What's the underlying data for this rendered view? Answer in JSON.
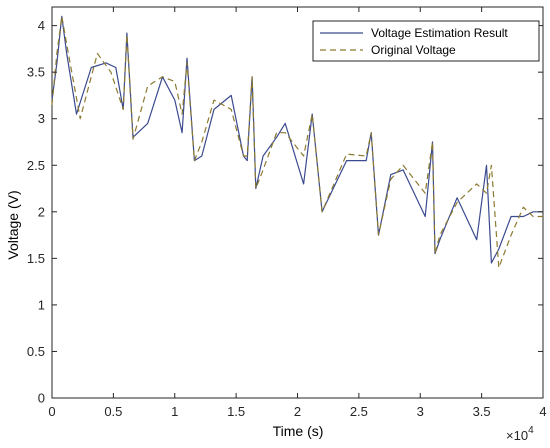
{
  "chart_data": {
    "type": "line",
    "xlabel": "Time (s)",
    "ylabel": "Voltage (V)",
    "x_exponent_label": "×10",
    "x_exponent_power": "4",
    "xlim": [
      0,
      40000
    ],
    "ylim": [
      0,
      4.2
    ],
    "xticks": [
      0,
      5000,
      10000,
      15000,
      20000,
      25000,
      30000,
      35000,
      40000
    ],
    "xtick_labels": [
      "0",
      "0.5",
      "1",
      "1.5",
      "2",
      "2.5",
      "3",
      "3.5",
      "4"
    ],
    "yticks": [
      0,
      0.5,
      1,
      1.5,
      2,
      2.5,
      3,
      3.5,
      4
    ],
    "ytick_labels": [
      "0",
      "0.5",
      "1",
      "1.5",
      "2",
      "2.5",
      "3",
      "3.5",
      "4"
    ],
    "grid": false,
    "legend_position": "top-right",
    "series": [
      {
        "name": "Voltage Estimation Result",
        "color": "#3b4a8f",
        "style": "solid",
        "x": [
          0,
          400,
          800,
          1200,
          2000,
          3200,
          4400,
          5200,
          5800,
          6100,
          6600,
          7800,
          9000,
          10000,
          10600,
          11000,
          11600,
          12200,
          13200,
          14600,
          15600,
          15900,
          16300,
          16600,
          17200,
          18300,
          19000,
          20500,
          21200,
          22000,
          24000,
          25600,
          26000,
          26600,
          27600,
          28600,
          30400,
          31000,
          31200,
          31600,
          33000,
          34600,
          35400,
          35800,
          36400,
          37400,
          38400,
          39200,
          40000
        ],
        "y": [
          3.2,
          3.6,
          4.1,
          3.7,
          3.05,
          3.55,
          3.6,
          3.55,
          3.1,
          3.92,
          2.8,
          2.95,
          3.45,
          3.2,
          2.85,
          3.65,
          2.55,
          2.6,
          3.1,
          3.25,
          2.6,
          2.55,
          3.45,
          2.25,
          2.6,
          2.8,
          2.95,
          2.3,
          3.05,
          2.0,
          2.55,
          2.55,
          2.85,
          1.75,
          2.4,
          2.45,
          1.95,
          2.75,
          1.55,
          1.7,
          2.15,
          1.7,
          2.5,
          1.45,
          1.6,
          1.95,
          1.95,
          2.0,
          2.0
        ]
      },
      {
        "name": "Original Voltage",
        "color": "#8c7a2f",
        "style": "dashed",
        "x": [
          0,
          400,
          800,
          1200,
          2300,
          3700,
          4800,
          5800,
          6100,
          6600,
          7800,
          9000,
          10000,
          10600,
          11000,
          11600,
          12200,
          13200,
          14600,
          15600,
          15900,
          16300,
          16600,
          17200,
          18300,
          19000,
          20500,
          21200,
          22000,
          24000,
          25600,
          26000,
          26600,
          27600,
          28600,
          30400,
          31000,
          31200,
          31600,
          33000,
          34600,
          35400,
          35800,
          36400,
          37400,
          38400,
          39200,
          40000
        ],
        "y": [
          3.15,
          3.7,
          4.1,
          3.8,
          3.0,
          3.7,
          3.5,
          3.1,
          3.9,
          2.78,
          3.35,
          3.45,
          3.4,
          3.05,
          3.6,
          2.55,
          2.75,
          3.2,
          3.1,
          2.6,
          2.6,
          3.45,
          2.25,
          2.45,
          2.85,
          2.85,
          2.6,
          3.05,
          2.0,
          2.62,
          2.6,
          2.85,
          1.75,
          2.35,
          2.5,
          2.2,
          2.75,
          1.55,
          1.75,
          2.1,
          2.3,
          2.2,
          2.5,
          1.4,
          1.75,
          2.05,
          1.95,
          1.95
        ]
      }
    ]
  }
}
